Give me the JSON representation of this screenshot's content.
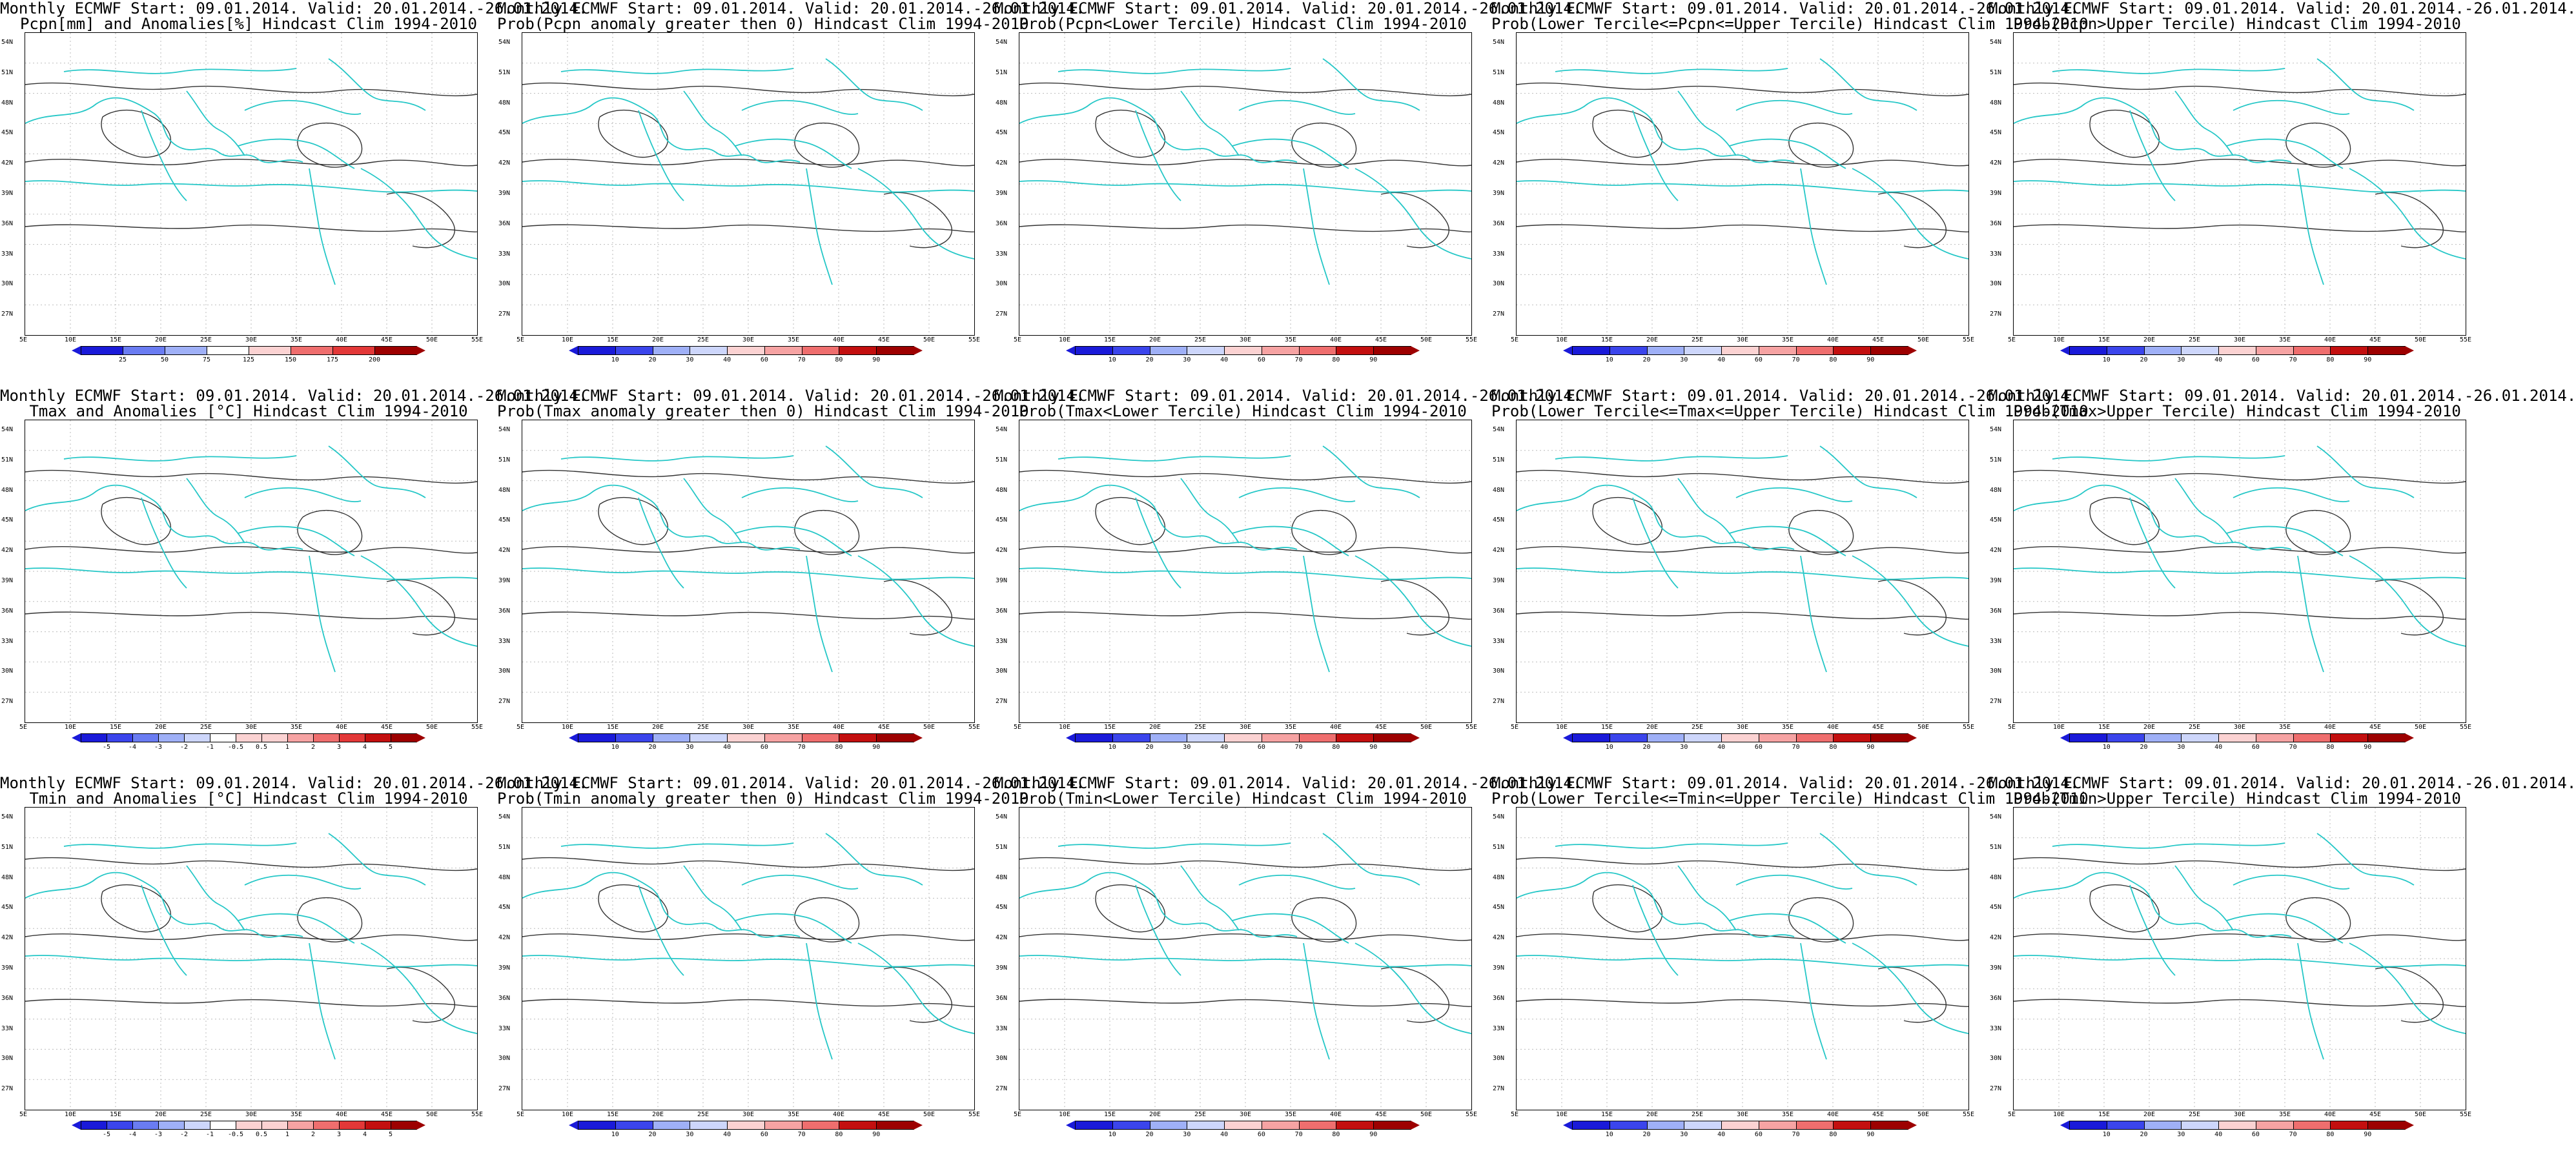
{
  "panels": [
    {
      "title1": "Monthly ECMWF Start: 09.01.2014. Valid: 20.01.2014.-26.01.2014.",
      "title2": "Pcpn[mm] and Anomalies[%] Hindcast Clim 1994-2010",
      "scale": "anom_pcp",
      "ticks": [
        "25",
        "50",
        "75",
        "125",
        "150",
        "175",
        "200"
      ]
    },
    {
      "title1": "Monthly ECMWF Start: 09.01.2014. Valid: 20.01.2014.-26.01.2014.",
      "title2": "Prob(Pcpn anomaly greater then 0) Hindcast Clim 1994-2010",
      "scale": "prob",
      "ticks": [
        "10",
        "20",
        "30",
        "40",
        "60",
        "70",
        "80",
        "90"
      ]
    },
    {
      "title1": "Monthly ECMWF Start: 09.01.2014. Valid: 20.01.2014.-26.01.2014.",
      "title2": "Prob(Pcpn<Lower Tercile) Hindcast Clim 1994-2010",
      "scale": "prob",
      "ticks": [
        "10",
        "20",
        "30",
        "40",
        "60",
        "70",
        "80",
        "90"
      ]
    },
    {
      "title1": "Monthly ECMWF Start: 09.01.2014. Valid: 20.01.2014.-26.01.2014.",
      "title2": "Prob(Lower Tercile<=Pcpn<=Upper Tercile) Hindcast Clim 1994-2010",
      "scale": "prob",
      "ticks": [
        "10",
        "20",
        "30",
        "40",
        "60",
        "70",
        "80",
        "90"
      ]
    },
    {
      "title1": "Monthly ECMWF Start: 09.01.2014. Valid: 20.01.2014.-26.01.2014.",
      "title2": "Prob(Pcpn>Upper Tercile) Hindcast Clim 1994-2010",
      "scale": "prob",
      "ticks": [
        "10",
        "20",
        "30",
        "40",
        "60",
        "70",
        "80",
        "90"
      ]
    },
    {
      "title1": "Monthly ECMWF Start: 09.01.2014. Valid: 20.01.2014.-26.01.2014.",
      "title2": "Tmax and Anomalies [°C] Hindcast Clim 1994-2010",
      "scale": "anom_t",
      "ticks": [
        "-5",
        "-4",
        "-3",
        "-2",
        "-1",
        "-0.5",
        "0.5",
        "1",
        "2",
        "3",
        "4",
        "5"
      ]
    },
    {
      "title1": "Monthly ECMWF Start: 09.01.2014. Valid: 20.01.2014.-26.01.2014.",
      "title2": "Prob(Tmax anomaly greater then 0) Hindcast Clim 1994-2010",
      "scale": "prob",
      "ticks": [
        "10",
        "20",
        "30",
        "40",
        "60",
        "70",
        "80",
        "90"
      ]
    },
    {
      "title1": "Monthly ECMWF Start: 09.01.2014. Valid: 20.01.2014.-26.01.2014.",
      "title2": "Prob(Tmax<Lower Tercile) Hindcast Clim 1994-2010",
      "scale": "prob",
      "ticks": [
        "10",
        "20",
        "30",
        "40",
        "60",
        "70",
        "80",
        "90"
      ]
    },
    {
      "title1": "Monthly ECMWF Start: 09.01.2014. Valid: 20.01.2014.-26.01.2014.",
      "title2": "Prob(Lower Tercile<=Tmax<=Upper Tercile) Hindcast Clim 1994-2010",
      "scale": "prob",
      "ticks": [
        "10",
        "20",
        "30",
        "40",
        "60",
        "70",
        "80",
        "90"
      ]
    },
    {
      "title1": "Monthly ECMWF Start: 09.01.2014. Valid: 20.01.2014.-26.01.2014.",
      "title2": "Prob(Tmax>Upper Tercile) Hindcast Clim 1994-2010",
      "scale": "prob",
      "ticks": [
        "10",
        "20",
        "30",
        "40",
        "60",
        "70",
        "80",
        "90"
      ]
    },
    {
      "title1": "Monthly ECMWF Start: 09.01.2014. Valid: 20.01.2014.-26.01.2014.",
      "title2": "Tmin and Anomalies [°C] Hindcast Clim 1994-2010",
      "scale": "anom_t",
      "ticks": [
        "-5",
        "-4",
        "-3",
        "-2",
        "-1",
        "-0.5",
        "0.5",
        "1",
        "2",
        "3",
        "4",
        "5"
      ]
    },
    {
      "title1": "Monthly ECMWF Start: 09.01.2014. Valid: 20.01.2014.-26.01.2014.",
      "title2": "Prob(Tmin anomaly greater then 0) Hindcast Clim 1994-2010",
      "scale": "prob",
      "ticks": [
        "10",
        "20",
        "30",
        "40",
        "60",
        "70",
        "80",
        "90"
      ]
    },
    {
      "title1": "Monthly ECMWF Start: 09.01.2014. Valid: 20.01.2014.-26.01.2014.",
      "title2": "Prob(Tmin<Lower Tercile) Hindcast Clim 1994-2010",
      "scale": "prob",
      "ticks": [
        "10",
        "20",
        "30",
        "40",
        "60",
        "70",
        "80",
        "90"
      ]
    },
    {
      "title1": "Monthly ECMWF Start: 09.01.2014. Valid: 20.01.2014.-26.01.2014.",
      "title2": "Prob(Lower Tercile<=Tmin<=Upper Tercile) Hindcast Clim 1994-2010",
      "scale": "prob",
      "ticks": [
        "10",
        "20",
        "30",
        "40",
        "60",
        "70",
        "80",
        "90"
      ]
    },
    {
      "title1": "Monthly ECMWF Start: 09.01.2014. Valid: 20.01.2014.-26.01.2014.",
      "title2": "Prob(Tmin>Upper Tercile) Hindcast Clim 1994-2010",
      "scale": "prob",
      "ticks": [
        "10",
        "20",
        "30",
        "40",
        "60",
        "70",
        "80",
        "90"
      ]
    }
  ],
  "lat_labels": [
    "54N",
    "51N",
    "48N",
    "45N",
    "42N",
    "39N",
    "36N",
    "33N",
    "30N",
    "27N"
  ],
  "lon_labels": [
    "5E",
    "10E",
    "15E",
    "20E",
    "25E",
    "30E",
    "35E",
    "40E",
    "45E",
    "50E",
    "55E"
  ],
  "colors": {
    "coast": "#25c7c7",
    "contour": "#333333",
    "ramp_blue_to_red": [
      "#1a1ad9",
      "#3b45ec",
      "#6a7cf2",
      "#9fb0f7",
      "#cdd6fb",
      "#ffffff",
      "#fbd2d2",
      "#f6a3a3",
      "#ef6e6e",
      "#e33838",
      "#c30f0f",
      "#9d0000"
    ]
  }
}
